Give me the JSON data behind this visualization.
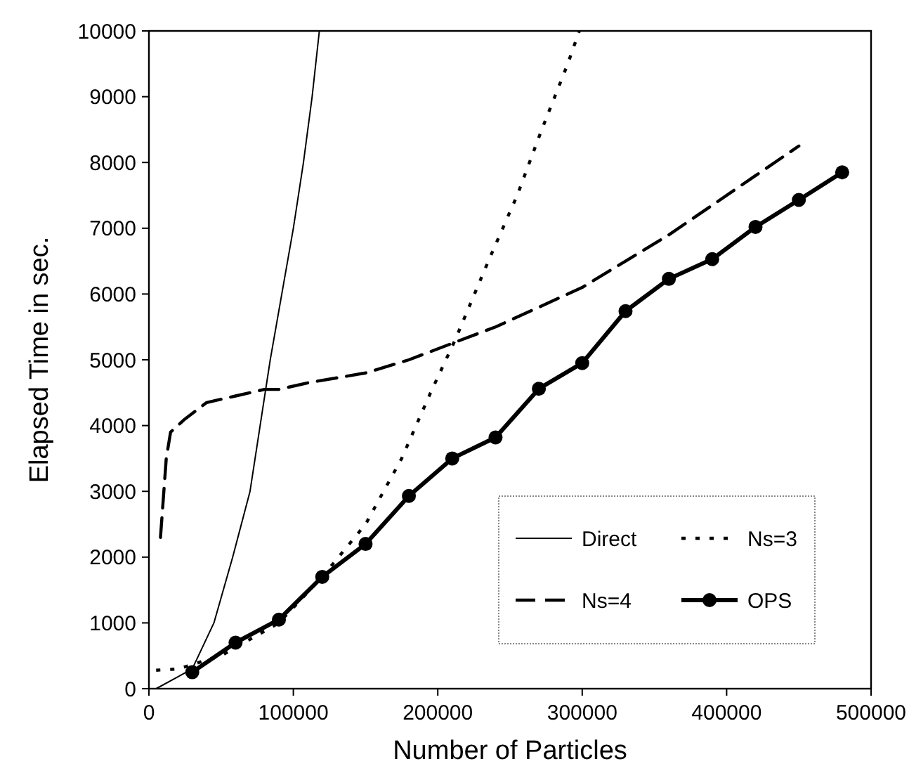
{
  "chart_data": {
    "type": "line",
    "xlabel": "Number of Particles",
    "ylabel": "Elapsed Time in sec.",
    "xlim": [
      0,
      500000
    ],
    "ylim": [
      0,
      10000
    ],
    "xticks": [
      0,
      100000,
      200000,
      300000,
      400000,
      500000
    ],
    "yticks": [
      0,
      1000,
      2000,
      3000,
      4000,
      5000,
      6000,
      7000,
      8000,
      9000,
      10000
    ],
    "grid": false,
    "legend": "bottom right",
    "series": [
      {
        "name": "Direct",
        "color": "#000000",
        "line_style": "solid",
        "marker": "none",
        "x": [
          5000,
          30000,
          45000,
          58000,
          70000,
          77000,
          84000,
          92000,
          100000,
          107000,
          113000,
          118000
        ],
        "values": [
          0,
          300,
          1000,
          2000,
          3000,
          4000,
          5000,
          6000,
          7000,
          8000,
          9000,
          10000
        ]
      },
      {
        "name": "Ns=3",
        "color": "#000000",
        "line_style": "dotted",
        "marker": "none",
        "x": [
          5000,
          20000,
          50000,
          90000,
          120000,
          150000,
          175000,
          195000,
          212000,
          235000,
          255000,
          272000,
          290000,
          298000
        ],
        "values": [
          280,
          300,
          500,
          1000,
          1700,
          2500,
          3500,
          4500,
          5300,
          6500,
          7500,
          8500,
          9500,
          10000
        ]
      },
      {
        "name": "Ns=4",
        "color": "#000000",
        "line_style": "dashed",
        "marker": "none",
        "x": [
          8000,
          12000,
          15000,
          25000,
          40000,
          60000,
          80000,
          90000,
          110000,
          150000,
          180000,
          210000,
          240000,
          270000,
          300000,
          330000,
          360000,
          390000,
          420000,
          450000
        ],
        "values": [
          2300,
          3500,
          3900,
          4100,
          4350,
          4450,
          4550,
          4550,
          4650,
          4800,
          5000,
          5250,
          5500,
          5800,
          6100,
          6500,
          6900,
          7350,
          7800,
          8250
        ]
      },
      {
        "name": "OPS",
        "color": "#000000",
        "line_style": "solid",
        "marker": "circle",
        "x": [
          30000,
          60000,
          90000,
          120000,
          150000,
          180000,
          210000,
          240000,
          270000,
          300000,
          330000,
          360000,
          390000,
          420000,
          450000,
          480000
        ],
        "values": [
          250,
          700,
          1050,
          1700,
          2200,
          2930,
          3500,
          3820,
          4560,
          4950,
          5740,
          6230,
          6530,
          7020,
          7430,
          7850
        ]
      }
    ]
  }
}
